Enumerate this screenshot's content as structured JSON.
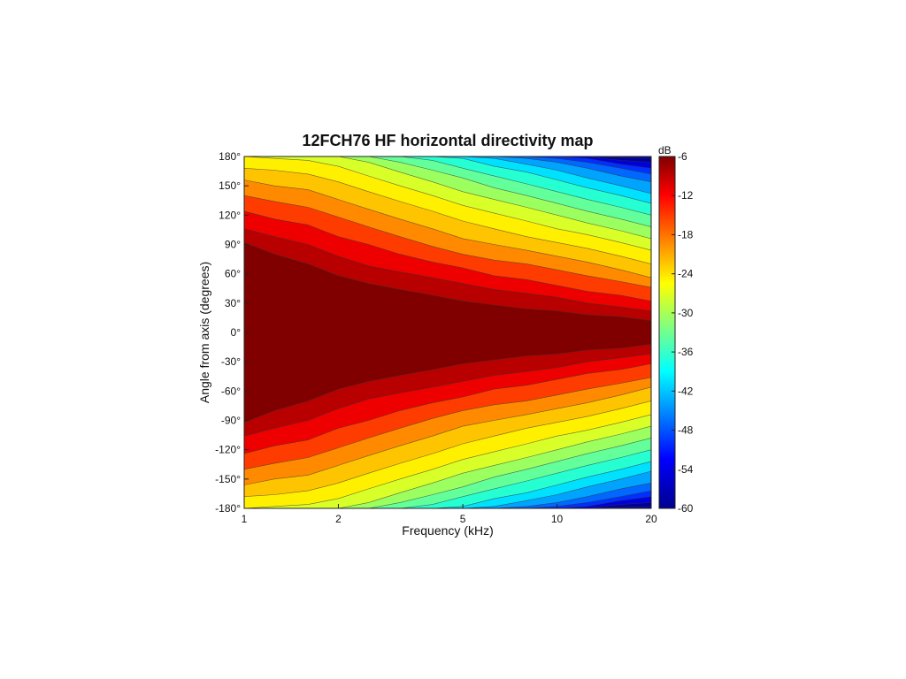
{
  "chart_data": {
    "type": "heatmap",
    "title": "12FCH76 HF horizontal directivity map",
    "xlabel": "Frequency (kHz)",
    "ylabel": "Angle from axis (degrees)",
    "x_scale": "log",
    "xlim": [
      1,
      20
    ],
    "ylim": [
      -180,
      180
    ],
    "x_ticks": [
      {
        "value": 1,
        "label": "1"
      },
      {
        "value": 2,
        "label": "2"
      },
      {
        "value": 5,
        "label": "5"
      },
      {
        "value": 10,
        "label": "10"
      },
      {
        "value": 20,
        "label": "20"
      }
    ],
    "y_ticks": [
      {
        "value": 180,
        "label": "180°"
      },
      {
        "value": 150,
        "label": "150°"
      },
      {
        "value": 120,
        "label": "120°"
      },
      {
        "value": 90,
        "label": "90°"
      },
      {
        "value": 60,
        "label": "60°"
      },
      {
        "value": 30,
        "label": "30°"
      },
      {
        "value": 0,
        "label": "0°"
      },
      {
        "value": -30,
        "label": "-30°"
      },
      {
        "value": -60,
        "label": "-60°"
      },
      {
        "value": -90,
        "label": "-90°"
      },
      {
        "value": -120,
        "label": "-120°"
      },
      {
        "value": -150,
        "label": "-150°"
      },
      {
        "value": -180,
        "label": "-180°"
      }
    ],
    "colorbar": {
      "unit": "dB",
      "range": [
        -60,
        -6
      ],
      "ticks": [
        {
          "value": -6,
          "label": "-6"
        },
        {
          "value": -12,
          "label": "-12"
        },
        {
          "value": -18,
          "label": "-18"
        },
        {
          "value": -24,
          "label": "-24"
        },
        {
          "value": -30,
          "label": "-30"
        },
        {
          "value": -36,
          "label": "-36"
        },
        {
          "value": -42,
          "label": "-42"
        },
        {
          "value": -48,
          "label": "-48"
        },
        {
          "value": -54,
          "label": "-54"
        },
        {
          "value": -60,
          "label": "-60"
        }
      ],
      "colormap": "jet"
    },
    "grid": false,
    "contour_levels_db": [
      -6,
      -9,
      -12,
      -15,
      -18,
      -21,
      -24,
      -27,
      -30,
      -33,
      -36,
      -39,
      -42,
      -45,
      -48,
      -51,
      -54
    ],
    "contour_colors": [
      "#800000",
      "#b80000",
      "#ee0000",
      "#ff3c00",
      "#ff8a00",
      "#ffc400",
      "#fff000",
      "#d8ff28",
      "#9cff60",
      "#62ff9a",
      "#26ffd2",
      "#00e0ff",
      "#00a4ff",
      "#0068ff",
      "#0030ff",
      "#0000dd",
      "#00009c"
    ],
    "frequencies_khz": [
      1,
      1.25,
      1.6,
      2,
      2.5,
      3.15,
      4,
      5,
      6.3,
      8,
      10,
      12.5,
      16,
      20
    ],
    "beamwidth_angles_deg": {
      "-6": [
        92,
        80,
        70,
        58,
        50,
        44,
        38,
        32,
        28,
        24,
        22,
        18,
        16,
        12
      ],
      "-9": [
        106,
        98,
        90,
        78,
        68,
        62,
        56,
        50,
        44,
        40,
        36,
        30,
        26,
        22
      ],
      "-12": [
        124,
        116,
        110,
        98,
        90,
        80,
        72,
        66,
        58,
        54,
        48,
        42,
        38,
        32
      ],
      "-15": [
        140,
        134,
        128,
        118,
        108,
        98,
        88,
        80,
        74,
        70,
        64,
        58,
        52,
        46
      ],
      "-18": [
        156,
        150,
        146,
        136,
        126,
        116,
        106,
        96,
        90,
        84,
        78,
        72,
        64,
        56
      ],
      "-21": [
        168,
        166,
        162,
        154,
        144,
        134,
        124,
        114,
        106,
        98,
        92,
        86,
        78,
        70
      ],
      "-24": [
        180,
        178,
        176,
        170,
        160,
        150,
        140,
        130,
        122,
        114,
        106,
        100,
        92,
        84
      ],
      "-27": [
        180,
        180,
        180,
        180,
        174,
        164,
        154,
        144,
        136,
        128,
        120,
        112,
        104,
        96
      ],
      "-30": [
        180,
        180,
        180,
        180,
        180,
        174,
        166,
        158,
        148,
        140,
        132,
        124,
        116,
        108
      ],
      "-33": [
        180,
        180,
        180,
        180,
        180,
        180,
        176,
        168,
        160,
        152,
        144,
        136,
        128,
        120
      ],
      "-36": [
        180,
        180,
        180,
        180,
        180,
        180,
        180,
        178,
        170,
        164,
        156,
        148,
        140,
        132
      ],
      "-39": [
        180,
        180,
        180,
        180,
        180,
        180,
        180,
        180,
        178,
        172,
        166,
        158,
        150,
        142
      ],
      "-42": [
        180,
        180,
        180,
        180,
        180,
        180,
        180,
        180,
        180,
        178,
        174,
        168,
        160,
        154
      ],
      "-45": [
        180,
        180,
        180,
        180,
        180,
        180,
        180,
        180,
        180,
        180,
        178,
        174,
        168,
        162
      ],
      "-48": [
        180,
        180,
        180,
        180,
        180,
        180,
        180,
        180,
        180,
        180,
        180,
        178,
        172,
        168
      ],
      "-51": [
        180,
        180,
        180,
        180,
        180,
        180,
        180,
        180,
        180,
        180,
        180,
        180,
        176,
        174
      ],
      "-54": [
        180,
        180,
        180,
        180,
        180,
        180,
        180,
        180,
        180,
        180,
        180,
        180,
        179,
        178
      ]
    }
  }
}
